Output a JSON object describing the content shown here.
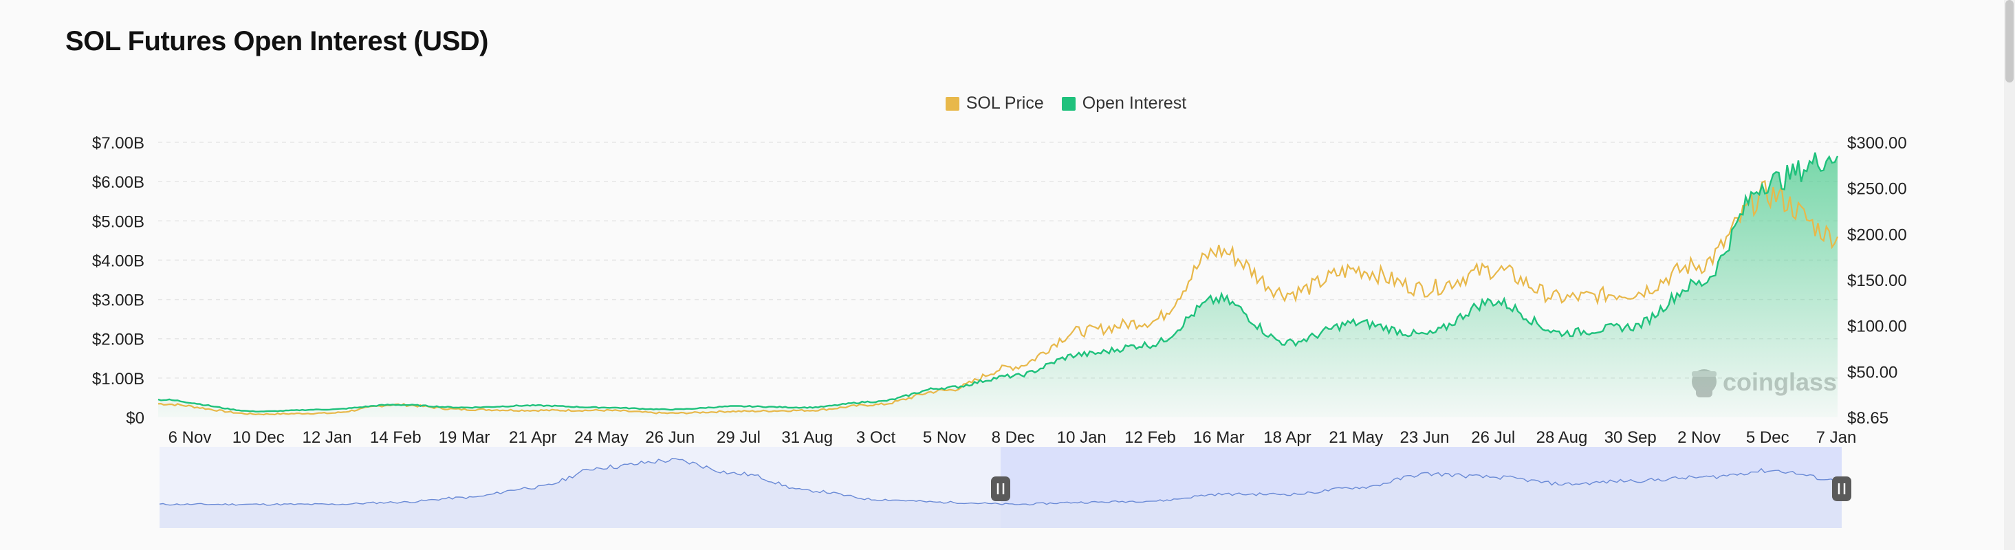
{
  "page": {
    "title": "SOL Futures Open Interest (USD)"
  },
  "colors": {
    "price": "#e8b84a",
    "oi": "#1fc17c",
    "oi_fill_top": "#4ccb8e",
    "grid": "#e6e6e6",
    "navigator_fill": "#dde3f7",
    "navigator_line": "#6a8ad6",
    "navigator_selected": "#cdd6fb",
    "handle": "#5a5a5a"
  },
  "watermark": {
    "text": "coinglass",
    "icon": "coinglass-logo-icon"
  },
  "chart_data": {
    "type": "line",
    "title": "SOL Futures Open Interest (USD)",
    "legend": {
      "position": "top-center",
      "items": [
        "SOL Price",
        "Open Interest"
      ]
    },
    "grid": true,
    "x_tick_labels": [
      "6 Nov",
      "10 Dec",
      "12 Jan",
      "14 Feb",
      "19 Mar",
      "21 Apr",
      "24 May",
      "26 Jun",
      "29 Jul",
      "31 Aug",
      "3 Oct",
      "5 Nov",
      "8 Dec",
      "10 Jan",
      "12 Feb",
      "16 Mar",
      "18 Apr",
      "21 May",
      "23 Jun",
      "26 Jul",
      "28 Aug",
      "30 Sep",
      "2 Nov",
      "5 Dec",
      "7 Jan"
    ],
    "y_left": {
      "ticks": [
        "$0",
        "$1.00B",
        "$2.00B",
        "$3.00B",
        "$4.00B",
        "$5.00B",
        "$6.00B",
        "$7.00B"
      ],
      "range": [
        0,
        7
      ]
    },
    "y_right": {
      "ticks": [
        "$8.65",
        "$50.00",
        "$100.00",
        "$150.00",
        "$200.00",
        "$250.00",
        "$300.00"
      ],
      "range": [
        8.65,
        300
      ]
    },
    "x": [
      "6 Nov",
      "10 Dec",
      "12 Jan",
      "14 Feb",
      "19 Mar",
      "21 Apr",
      "24 May",
      "26 Jun",
      "29 Jul",
      "31 Aug",
      "3 Oct",
      "5 Nov",
      "8 Dec",
      "10 Jan",
      "12 Feb",
      "16 Mar",
      "18 Apr",
      "21 May",
      "23 Jun",
      "26 Jul",
      "28 Aug",
      "30 Sep",
      "2 Nov",
      "5 Dec",
      "7 Jan"
    ],
    "series": [
      {
        "name": "SOL Price",
        "axis": "right",
        "values": [
          23,
          12,
          13,
          22,
          17,
          16,
          16,
          13,
          15,
          16,
          22,
          37,
          62,
          100,
          110,
          185,
          140,
          165,
          145,
          165,
          135,
          140,
          170,
          245,
          200
        ]
      },
      {
        "name": "Open Interest",
        "axis": "left",
        "values": [
          0.45,
          0.15,
          0.2,
          0.32,
          0.25,
          0.3,
          0.25,
          0.2,
          0.28,
          0.25,
          0.4,
          0.75,
          1.05,
          1.6,
          1.85,
          3.0,
          1.9,
          2.4,
          2.1,
          2.95,
          2.15,
          2.3,
          3.4,
          6.0,
          6.65
        ]
      }
    ],
    "navigator": {
      "selected_range": [
        "8 Dec",
        "7 Jan"
      ],
      "values": [
        0.35,
        0.35,
        0.35,
        0.38,
        0.45,
        0.6,
        0.9,
        1.0,
        0.8,
        0.55,
        0.42,
        0.38,
        0.35,
        0.38,
        0.4,
        0.5,
        0.5,
        0.6,
        0.8,
        0.75,
        0.65,
        0.7,
        0.75,
        0.85,
        0.7
      ]
    }
  }
}
